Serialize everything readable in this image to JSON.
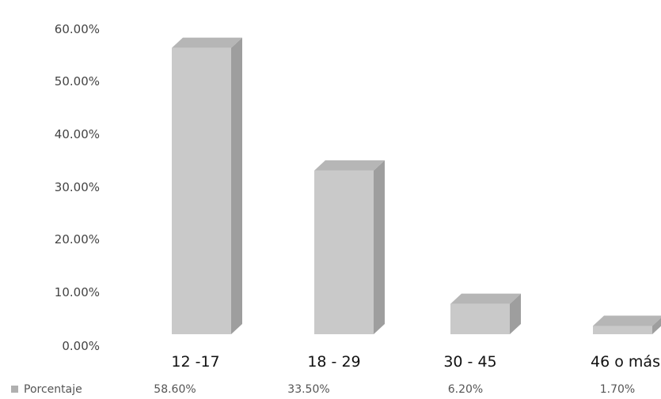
{
  "chart_data": {
    "type": "bar",
    "title": "",
    "xlabel": "",
    "ylabel": "",
    "ylim": [
      0,
      60
    ],
    "yticks": [
      "0.00%",
      "10.00%",
      "20.00%",
      "30.00%",
      "40.00%",
      "50.00%",
      "60.00%"
    ],
    "grid": false,
    "categories": [
      "12 -17",
      "18 - 29",
      "30 - 45",
      "46 o más"
    ],
    "series": [
      {
        "name": "Porcentaje",
        "values": [
          58.6,
          33.5,
          6.2,
          1.7
        ],
        "labels": [
          "58.60%",
          "33.50%",
          "6.20%",
          "1.70%"
        ]
      }
    ],
    "legend": "bottom-left",
    "style": "3d-bar",
    "colors": {
      "bar_front": "#c9c9c9",
      "bar_side": "#9e9e9e",
      "bar_top": "#b6b6b6",
      "legend_marker": "#b0b0b0"
    }
  }
}
